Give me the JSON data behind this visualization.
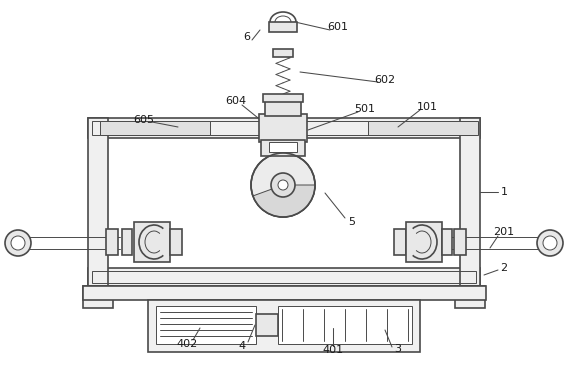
{
  "bg_color": "#ffffff",
  "line_color": "#4a4a4a",
  "line_width": 1.2,
  "thin_line": 0.7,
  "fig_width": 5.66,
  "fig_height": 3.83,
  "dpi": 100
}
